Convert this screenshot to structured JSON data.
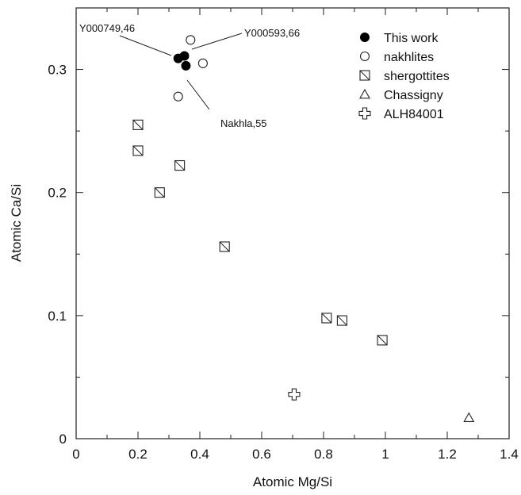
{
  "chart_data": {
    "type": "scatter",
    "xlabel": "Atomic Mg/Si",
    "ylabel": "Atomic Ca/Si",
    "xlim": [
      0,
      1.4
    ],
    "ylim": [
      0,
      0.35
    ],
    "xticks": [
      "0",
      "0.2",
      "0.4",
      "0.6",
      "0.8",
      "1",
      "1.2",
      "1.4"
    ],
    "yticks": [
      "0",
      "0.1",
      "0.2",
      "0.3"
    ],
    "legend_position": "top-right",
    "series": [
      {
        "name": "This work",
        "marker": "filled-circle",
        "points": [
          [
            0.33,
            0.309
          ],
          [
            0.35,
            0.311
          ],
          [
            0.355,
            0.303
          ]
        ]
      },
      {
        "name": "nakhlites",
        "marker": "open-circle",
        "points": [
          [
            0.37,
            0.324
          ],
          [
            0.41,
            0.305
          ],
          [
            0.33,
            0.278
          ]
        ]
      },
      {
        "name": "shergottites",
        "marker": "hatched-square",
        "points": [
          [
            0.2,
            0.255
          ],
          [
            0.2,
            0.234
          ],
          [
            0.335,
            0.222
          ],
          [
            0.27,
            0.2
          ],
          [
            0.48,
            0.156
          ],
          [
            0.81,
            0.098
          ],
          [
            0.86,
            0.096
          ],
          [
            0.99,
            0.08
          ]
        ]
      },
      {
        "name": "Chassigny",
        "marker": "open-triangle",
        "points": [
          [
            1.27,
            0.017
          ]
        ]
      },
      {
        "name": "ALH84001",
        "marker": "open-cross",
        "points": [
          [
            0.705,
            0.036
          ]
        ]
      }
    ],
    "annotations": [
      {
        "text": "Y000749,46",
        "target": [
          0.33,
          0.309
        ]
      },
      {
        "text": "Y000593,66",
        "target": [
          0.355,
          0.311
        ]
      },
      {
        "text": "Nakhla,55",
        "target": [
          0.355,
          0.303
        ]
      }
    ]
  }
}
